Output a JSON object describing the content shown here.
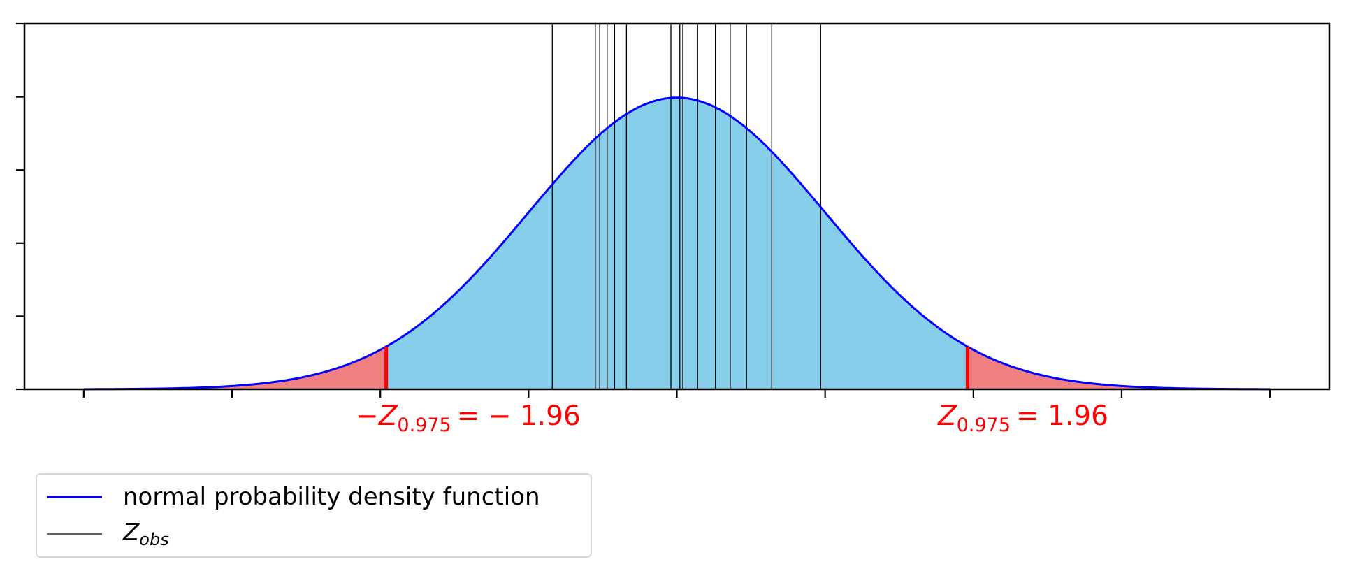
{
  "chart_data": {
    "type": "area",
    "xlim": [
      -4.4,
      4.4
    ],
    "ylim": [
      0,
      0.5
    ],
    "x_ticks": [
      -4,
      -3,
      -2,
      -1,
      0,
      1,
      2,
      3,
      4
    ],
    "y_ticks": [
      0,
      0.1,
      0.2,
      0.3,
      0.4,
      0.5
    ],
    "tick_labels_shown": false,
    "curve_range": [
      -4,
      4
    ],
    "critical_values": [
      -1.96,
      1.96
    ],
    "critical_labels": [
      {
        "prefix": "−",
        "symbol": "Z",
        "subscript": "0.975",
        "value_text": "= − 1.96"
      },
      {
        "prefix": "",
        "symbol": "Z",
        "subscript": "0.975",
        "value_text": "= 1.96"
      }
    ],
    "z_obs": [
      -0.84,
      -0.55,
      -0.52,
      -0.47,
      -0.42,
      -0.34,
      -0.04,
      0.02,
      0.04,
      0.14,
      0.26,
      0.36,
      0.47,
      0.64,
      0.97
    ],
    "series": [
      {
        "name": "normal probability density function",
        "kind": "line",
        "color": "#0000ff"
      },
      {
        "name": "Z_obs",
        "kind": "vline",
        "color": "#000000"
      }
    ],
    "fills": {
      "center": "#87ceeb",
      "tails": "#f08080"
    },
    "legend": {
      "placement": "bottom-left-outside",
      "items": [
        {
          "label": "normal probability density function"
        },
        {
          "symbol": "Z",
          "subscript": "obs"
        }
      ]
    },
    "grid": false
  }
}
